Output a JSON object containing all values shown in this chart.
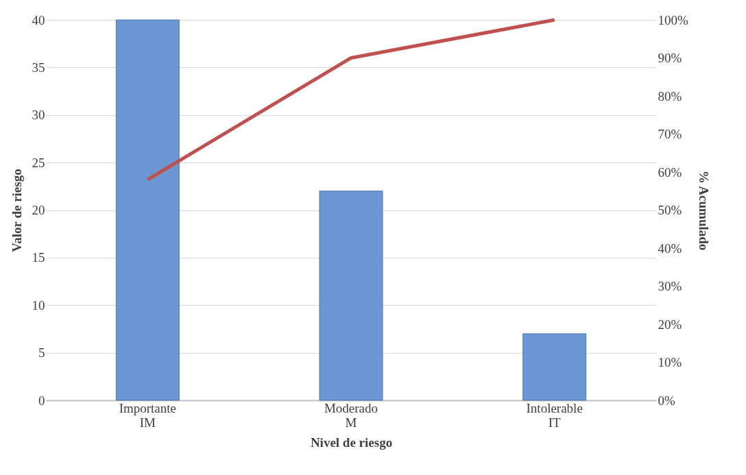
{
  "chart_data": {
    "type": "bar",
    "xlabel": "Nivel de riesgo",
    "ylabel": "Valor de riesgo",
    "y2label": "% Acumulado",
    "categories": [
      "Importante\nIM",
      "Moderado\nM",
      "Intolerable\nIT"
    ],
    "series": [
      {
        "color": "#6a96d4",
        "values": [
          40,
          22,
          7
        ]
      },
      {
        "type": "line",
        "axis": "y2",
        "color": "#c0504d",
        "values": [
          58,
          90,
          100
        ]
      }
    ],
    "ylim": [
      0,
      40
    ],
    "yticks": [
      0,
      5,
      10,
      15,
      20,
      25,
      30,
      35,
      40
    ],
    "y2lim": [
      0,
      100
    ],
    "y2ticks": [
      {
        "value": 0,
        "label": "0%"
      },
      {
        "value": 10,
        "label": "10%"
      },
      {
        "value": 20,
        "label": "20%"
      },
      {
        "value": 30,
        "label": "30%"
      },
      {
        "value": 40,
        "label": "40%"
      },
      {
        "value": 50,
        "label": "50%"
      },
      {
        "value": 60,
        "label": "60%"
      },
      {
        "value": 70,
        "label": "70%"
      },
      {
        "value": 80,
        "label": "80%"
      },
      {
        "value": 90,
        "label": "90%"
      },
      {
        "value": 100,
        "label": "100%"
      }
    ],
    "grid": "y",
    "marker": "none",
    "line_style": "solid"
  }
}
